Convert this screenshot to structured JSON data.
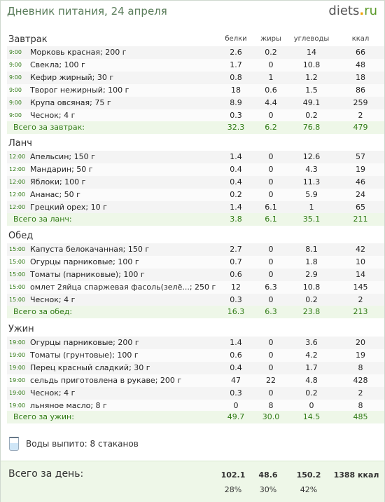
{
  "header": {
    "title": "Дневник питания, 24 апреля",
    "logo_main": "diets",
    "logo_dot": ".",
    "logo_tld": "ru"
  },
  "columns": {
    "protein": "белки",
    "fat": "жиры",
    "carbs": "углеводы",
    "kcal": "ккал"
  },
  "meals": [
    {
      "title": "Завтрак",
      "items": [
        {
          "time": "9:00",
          "food": "Морковь красная; 200 г",
          "protein": "2.6",
          "fat": "0.2",
          "carbs": "14",
          "kcal": "66"
        },
        {
          "time": "9:00",
          "food": "Свекла; 100 г",
          "protein": "1.7",
          "fat": "0",
          "carbs": "10.8",
          "kcal": "48"
        },
        {
          "time": "9:00",
          "food": "Кефир жирный; 30 г",
          "protein": "0.8",
          "fat": "1",
          "carbs": "1.2",
          "kcal": "18"
        },
        {
          "time": "9:00",
          "food": "Творог нежирный; 100 г",
          "protein": "18",
          "fat": "0.6",
          "carbs": "1.5",
          "kcal": "86"
        },
        {
          "time": "9:00",
          "food": "Крупа овсяная; 75 г",
          "protein": "8.9",
          "fat": "4.4",
          "carbs": "49.1",
          "kcal": "259"
        },
        {
          "time": "9:00",
          "food": "Чеснок; 4 г",
          "protein": "0.3",
          "fat": "0",
          "carbs": "0.2",
          "kcal": "2"
        }
      ],
      "total": {
        "label": "Всего за завтрак:",
        "protein": "32.3",
        "fat": "6.2",
        "carbs": "76.8",
        "kcal": "479"
      }
    },
    {
      "title": "Ланч",
      "items": [
        {
          "time": "12:00",
          "food": "Апельсин; 150 г",
          "protein": "1.4",
          "fat": "0",
          "carbs": "12.6",
          "kcal": "57"
        },
        {
          "time": "12:00",
          "food": "Мандарин; 50 г",
          "protein": "0.4",
          "fat": "0",
          "carbs": "4.3",
          "kcal": "19"
        },
        {
          "time": "12:00",
          "food": "Яблоки; 100 г",
          "protein": "0.4",
          "fat": "0",
          "carbs": "11.3",
          "kcal": "46"
        },
        {
          "time": "12:00",
          "food": "Ананас; 50 г",
          "protein": "0.2",
          "fat": "0",
          "carbs": "5.9",
          "kcal": "24"
        },
        {
          "time": "12:00",
          "food": "Грецкий орех; 10 г",
          "protein": "1.4",
          "fat": "6.1",
          "carbs": "1",
          "kcal": "65"
        }
      ],
      "total": {
        "label": "Всего за ланч:",
        "protein": "3.8",
        "fat": "6.1",
        "carbs": "35.1",
        "kcal": "211"
      }
    },
    {
      "title": "Обед",
      "items": [
        {
          "time": "15:00",
          "food": "Капуста белокачанная; 150 г",
          "protein": "2.7",
          "fat": "0",
          "carbs": "8.1",
          "kcal": "42"
        },
        {
          "time": "15:00",
          "food": "Огурцы парниковые; 100 г",
          "protein": "0.7",
          "fat": "0",
          "carbs": "1.8",
          "kcal": "10"
        },
        {
          "time": "15:00",
          "food": "Томаты (парниковые); 100 г",
          "protein": "0.6",
          "fat": "0",
          "carbs": "2.9",
          "kcal": "14"
        },
        {
          "time": "15:00",
          "food": "омлет 2яйца спаржевая фасоль(зелё...; 250 г",
          "protein": "12",
          "fat": "6.3",
          "carbs": "10.8",
          "kcal": "145"
        },
        {
          "time": "15:00",
          "food": "Чеснок; 4 г",
          "protein": "0.3",
          "fat": "0",
          "carbs": "0.2",
          "kcal": "2"
        }
      ],
      "total": {
        "label": "Всего за обед:",
        "protein": "16.3",
        "fat": "6.3",
        "carbs": "23.8",
        "kcal": "213"
      }
    },
    {
      "title": "Ужин",
      "items": [
        {
          "time": "19:00",
          "food": "Огурцы парниковые; 200 г",
          "protein": "1.4",
          "fat": "0",
          "carbs": "3.6",
          "kcal": "20"
        },
        {
          "time": "19:00",
          "food": "Томаты (грунтовые); 100 г",
          "protein": "0.6",
          "fat": "0",
          "carbs": "4.2",
          "kcal": "19"
        },
        {
          "time": "19:00",
          "food": "Перец красный сладкий; 30 г",
          "protein": "0.4",
          "fat": "0",
          "carbs": "1.7",
          "kcal": "8"
        },
        {
          "time": "19:00",
          "food": "сельдь приготовлена в рукаве; 200 г",
          "protein": "47",
          "fat": "22",
          "carbs": "4.8",
          "kcal": "428"
        },
        {
          "time": "19:00",
          "food": "Чеснок; 4 г",
          "protein": "0.3",
          "fat": "0",
          "carbs": "0.2",
          "kcal": "2"
        },
        {
          "time": "19:00",
          "food": "льняное масло; 8 г",
          "protein": "0",
          "fat": "8",
          "carbs": "0",
          "kcal": "8"
        }
      ],
      "total": {
        "label": "Всего за ужин:",
        "protein": "49.7",
        "fat": "30.0",
        "carbs": "14.5",
        "kcal": "485"
      }
    }
  ],
  "water": {
    "text": "Воды выпито: 8 стаканов",
    "icon": "glass-icon"
  },
  "day_total": {
    "label": "Всего за день:",
    "protein": "102.1",
    "fat": "48.6",
    "carbs": "150.2",
    "kcal": "1388 ккал",
    "protein_pct": "28%",
    "fat_pct": "30%",
    "carbs_pct": "42%"
  },
  "colors": {
    "accent_green": "#2f7a14",
    "total_bg": "#eef7e8",
    "title_color": "#5b7d5b",
    "logo_dot": "#f2a100"
  }
}
